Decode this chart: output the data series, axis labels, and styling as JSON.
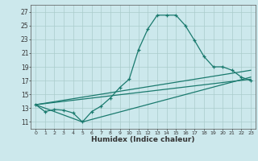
{
  "xlabel": "Humidex (Indice chaleur)",
  "background_color": "#cce8ec",
  "grid_color": "#aacccc",
  "line_color": "#1a7a6e",
  "xlim": [
    -0.5,
    23.5
  ],
  "ylim": [
    10.0,
    28.0
  ],
  "yticks": [
    11,
    13,
    15,
    17,
    19,
    21,
    23,
    25,
    27
  ],
  "xticks": [
    0,
    1,
    2,
    3,
    4,
    5,
    6,
    7,
    8,
    9,
    10,
    11,
    12,
    13,
    14,
    15,
    16,
    17,
    18,
    19,
    20,
    21,
    22,
    23
  ],
  "series1_x": [
    0,
    1,
    2,
    3,
    4,
    5,
    6,
    7,
    8,
    9,
    10,
    11,
    12,
    13,
    14,
    15,
    16,
    17,
    18,
    19,
    20,
    21,
    22,
    23
  ],
  "series1_y": [
    13.5,
    12.5,
    12.8,
    12.7,
    12.3,
    11.0,
    12.5,
    13.3,
    14.5,
    16.0,
    17.2,
    21.5,
    24.5,
    26.5,
    26.5,
    26.5,
    25.0,
    22.8,
    20.5,
    19.0,
    19.0,
    18.5,
    17.5,
    17.0
  ],
  "series2_x": [
    0,
    23
  ],
  "series2_y": [
    13.5,
    17.2
  ],
  "series3_x": [
    0,
    5,
    23
  ],
  "series3_y": [
    13.5,
    11.0,
    17.5
  ],
  "series4_x": [
    0,
    23
  ],
  "series4_y": [
    13.5,
    18.5
  ]
}
